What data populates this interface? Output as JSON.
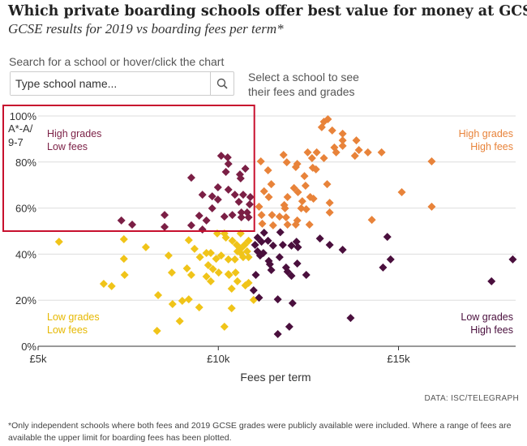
{
  "title": "Which private boarding schools offer best value for money at GCSE?",
  "subtitle": "GCSE results for 2019 vs boarding fees per term*",
  "search": {
    "label": "Search for a school or hover/click the chart",
    "placeholder": "Type school name...",
    "helper": "Select a school to see their fees and grades"
  },
  "quadrants": {
    "high_low": {
      "line1": "High grades",
      "line2": "Low fees",
      "color": "#7b1f45"
    },
    "high_high": {
      "line1": "High grades",
      "line2": "High fees",
      "color": "#e8833a"
    },
    "low_low": {
      "line1": "Low grades",
      "line2": "Low fees",
      "color": "#e6b800"
    },
    "low_high": {
      "line1": "Low grades",
      "line2": "High fees",
      "color": "#4a0f3d"
    }
  },
  "credit": "DATA: ISC/TELEGRAPH",
  "footnote": "*Only independent schools where both fees and 2019 GCSE grades were publicly available were included. Where a range of fees are available the upper limit for boarding fees has been plotted.",
  "chart_data": {
    "type": "scatter",
    "xlabel": "Fees per term",
    "ylabel": "A*-A/ 9-7",
    "xlim": [
      5,
      18.25
    ],
    "ylim": [
      0,
      100
    ],
    "x_ticks": [
      {
        "v": 5,
        "label": "£5k"
      },
      {
        "v": 10,
        "label": "£10k"
      },
      {
        "v": 15,
        "label": "£15k"
      }
    ],
    "y_ticks": [
      {
        "v": 0,
        "label": "0%"
      },
      {
        "v": 20,
        "label": "20%"
      },
      {
        "v": 40,
        "label": "40%"
      },
      {
        "v": 60,
        "label": "60%"
      },
      {
        "v": 80,
        "label": "80%"
      },
      {
        "v": 100,
        "label": "100%"
      }
    ],
    "y_axis_title_lines": [
      "A*-A/",
      "9-7"
    ],
    "grid": true,
    "highlight_box": {
      "x": [
        5,
        11
      ],
      "y": [
        50,
        100
      ],
      "color": "#c8102e"
    },
    "series": [
      {
        "quadrant": "high_low",
        "color": "#7b1f45",
        "points": [
          [
            7.31,
            54.6
          ],
          [
            7.61,
            52.8
          ],
          [
            8.51,
            57
          ],
          [
            8.51,
            51.8
          ],
          [
            9.25,
            73.2
          ],
          [
            9.25,
            52.5
          ],
          [
            9.47,
            56.7
          ],
          [
            9.56,
            65.8
          ],
          [
            9.56,
            50.7
          ],
          [
            9.67,
            54.6
          ],
          [
            9.83,
            65.1
          ],
          [
            9.83,
            59.9
          ],
          [
            9.99,
            69
          ],
          [
            9.99,
            63.7
          ],
          [
            10.08,
            82.7
          ],
          [
            10.26,
            82
          ],
          [
            10.28,
            79.2
          ],
          [
            10.21,
            75.7
          ],
          [
            10.28,
            68
          ],
          [
            10.17,
            56.3
          ],
          [
            10.39,
            57
          ],
          [
            10.46,
            65.8
          ],
          [
            10.6,
            74.6
          ],
          [
            10.62,
            72.9
          ],
          [
            10.75,
            77.1
          ],
          [
            10.69,
            65.8
          ],
          [
            10.57,
            62.7
          ],
          [
            10.89,
            64.8
          ],
          [
            10.64,
            58.1
          ],
          [
            10.8,
            58.1
          ],
          [
            10.87,
            61.6
          ],
          [
            10.64,
            56
          ],
          [
            10.84,
            56
          ]
        ]
      },
      {
        "quadrant": "high_high",
        "color": "#e8833a",
        "points": [
          [
            11.18,
            80.3
          ],
          [
            11.38,
            76.4
          ],
          [
            11.47,
            70.4
          ],
          [
            11.27,
            67.3
          ],
          [
            11.4,
            64.8
          ],
          [
            11.13,
            60.6
          ],
          [
            11.2,
            57
          ],
          [
            11.22,
            53.2
          ],
          [
            11.49,
            57
          ],
          [
            11.52,
            52.5
          ],
          [
            11.7,
            56.3
          ],
          [
            11.81,
            83.1
          ],
          [
            11.9,
            79.9
          ],
          [
            11.83,
            61.3
          ],
          [
            11.85,
            59.9
          ],
          [
            11.88,
            56
          ],
          [
            11.92,
            64.8
          ],
          [
            11.92,
            52.8
          ],
          [
            12.1,
            68.7
          ],
          [
            12.15,
            77.8
          ],
          [
            12.19,
            79.2
          ],
          [
            12.21,
            66.9
          ],
          [
            12.19,
            54.6
          ],
          [
            12.15,
            52.8
          ],
          [
            12.33,
            63
          ],
          [
            12.3,
            59.9
          ],
          [
            12.39,
            73.9
          ],
          [
            12.42,
            69.7
          ],
          [
            12.44,
            59.5
          ],
          [
            12.48,
            84.2
          ],
          [
            12.6,
            81.7
          ],
          [
            12.55,
            64.8
          ],
          [
            12.64,
            64.1
          ],
          [
            12.53,
            52.8
          ],
          [
            12.62,
            77.5
          ],
          [
            12.71,
            76.8
          ],
          [
            12.73,
            84.2
          ],
          [
            12.93,
            81.7
          ],
          [
            13.02,
            70.4
          ],
          [
            13.09,
            62.3
          ],
          [
            13.09,
            58.1
          ],
          [
            12.87,
            95.1
          ],
          [
            12.93,
            97.5
          ],
          [
            13.04,
            98.6
          ],
          [
            13.16,
            93.7
          ],
          [
            13.22,
            86.3
          ],
          [
            13.27,
            84.2
          ],
          [
            13.45,
            92.3
          ],
          [
            13.45,
            89.4
          ],
          [
            13.45,
            87
          ],
          [
            13.83,
            89.4
          ],
          [
            13.79,
            82.7
          ],
          [
            13.9,
            85.2
          ],
          [
            14.15,
            84.2
          ],
          [
            14.53,
            84.2
          ],
          [
            14.26,
            54.9
          ],
          [
            15.09,
            66.9
          ],
          [
            15.92,
            80.3
          ],
          [
            15.92,
            60.6
          ]
        ]
      },
      {
        "quadrant": "low_low",
        "color": "#f0c419",
        "points": [
          [
            5.58,
            45.4
          ],
          [
            7.38,
            46.5
          ],
          [
            7.99,
            43
          ],
          [
            7.38,
            38
          ],
          [
            7.4,
            31
          ],
          [
            6.82,
            27.1
          ],
          [
            7.04,
            26.1
          ],
          [
            8.62,
            39.4
          ],
          [
            8.71,
            32
          ],
          [
            9.18,
            46.1
          ],
          [
            9.34,
            42.3
          ],
          [
            9.13,
            33.8
          ],
          [
            9.25,
            31
          ],
          [
            8.33,
            22.2
          ],
          [
            8.73,
            18.3
          ],
          [
            9,
            19.7
          ],
          [
            9.18,
            20.4
          ],
          [
            9.47,
            16.9
          ],
          [
            8.93,
            10.9
          ],
          [
            8.3,
            6.7
          ],
          [
            10.17,
            8.5
          ],
          [
            10.37,
            16.5
          ],
          [
            10.37,
            25
          ],
          [
            9.49,
            38.7
          ],
          [
            9.67,
            40.5
          ],
          [
            9.79,
            40.5
          ],
          [
            9.67,
            30.3
          ],
          [
            9.79,
            28.2
          ],
          [
            9.72,
            35.2
          ],
          [
            9.85,
            33.5
          ],
          [
            9.94,
            38
          ],
          [
            10.01,
            32
          ],
          [
            10.08,
            39.4
          ],
          [
            10.28,
            37.7
          ],
          [
            10.46,
            37.7
          ],
          [
            10.28,
            31.3
          ],
          [
            10.3,
            31
          ],
          [
            10.48,
            32
          ],
          [
            10.53,
            28.2
          ],
          [
            10.75,
            26.4
          ],
          [
            10.84,
            27.5
          ],
          [
            10.98,
            20.1
          ],
          [
            9.97,
            49
          ],
          [
            10.17,
            49
          ],
          [
            10.62,
            49
          ],
          [
            10.21,
            47.2
          ],
          [
            10.39,
            45.8
          ],
          [
            10.51,
            44
          ],
          [
            10.62,
            42.3
          ],
          [
            10.73,
            44
          ],
          [
            10.84,
            45.8
          ],
          [
            10.8,
            41.2
          ],
          [
            10.62,
            40.5
          ],
          [
            10.84,
            38.7
          ],
          [
            10.69,
            38.7
          ],
          [
            10.53,
            41.2
          ]
        ]
      },
      {
        "quadrant": "low_high",
        "color": "#4a0f3d",
        "points": [
          [
            11.27,
            49.3
          ],
          [
            11.09,
            47.2
          ],
          [
            11.2,
            45.4
          ],
          [
            11.38,
            45.8
          ],
          [
            11.02,
            44
          ],
          [
            11.52,
            43.7
          ],
          [
            11.09,
            41.2
          ],
          [
            11.25,
            40.5
          ],
          [
            11.16,
            39.4
          ],
          [
            11.72,
            49.5
          ],
          [
            11.79,
            44
          ],
          [
            12.03,
            43.7
          ],
          [
            12.17,
            45.4
          ],
          [
            12.21,
            43
          ],
          [
            11.7,
            38.7
          ],
          [
            11.4,
            37
          ],
          [
            11.43,
            35.6
          ],
          [
            11.47,
            33.1
          ],
          [
            11.88,
            34.2
          ],
          [
            11.92,
            32.4
          ],
          [
            12.03,
            30.6
          ],
          [
            12.19,
            35.9
          ],
          [
            12.44,
            31
          ],
          [
            11.04,
            31
          ],
          [
            10.98,
            24.3
          ],
          [
            11.13,
            21.1
          ],
          [
            11.65,
            20.4
          ],
          [
            12.06,
            18.7
          ],
          [
            12.82,
            46.8
          ],
          [
            13.09,
            44
          ],
          [
            13.45,
            41.9
          ],
          [
            14.69,
            47.5
          ],
          [
            14.78,
            37.7
          ],
          [
            14.57,
            34.2
          ],
          [
            18.17,
            37.7
          ],
          [
            17.58,
            28.2
          ],
          [
            13.67,
            12.3
          ],
          [
            11.97,
            8.5
          ],
          [
            11.65,
            5.3
          ]
        ]
      }
    ]
  }
}
